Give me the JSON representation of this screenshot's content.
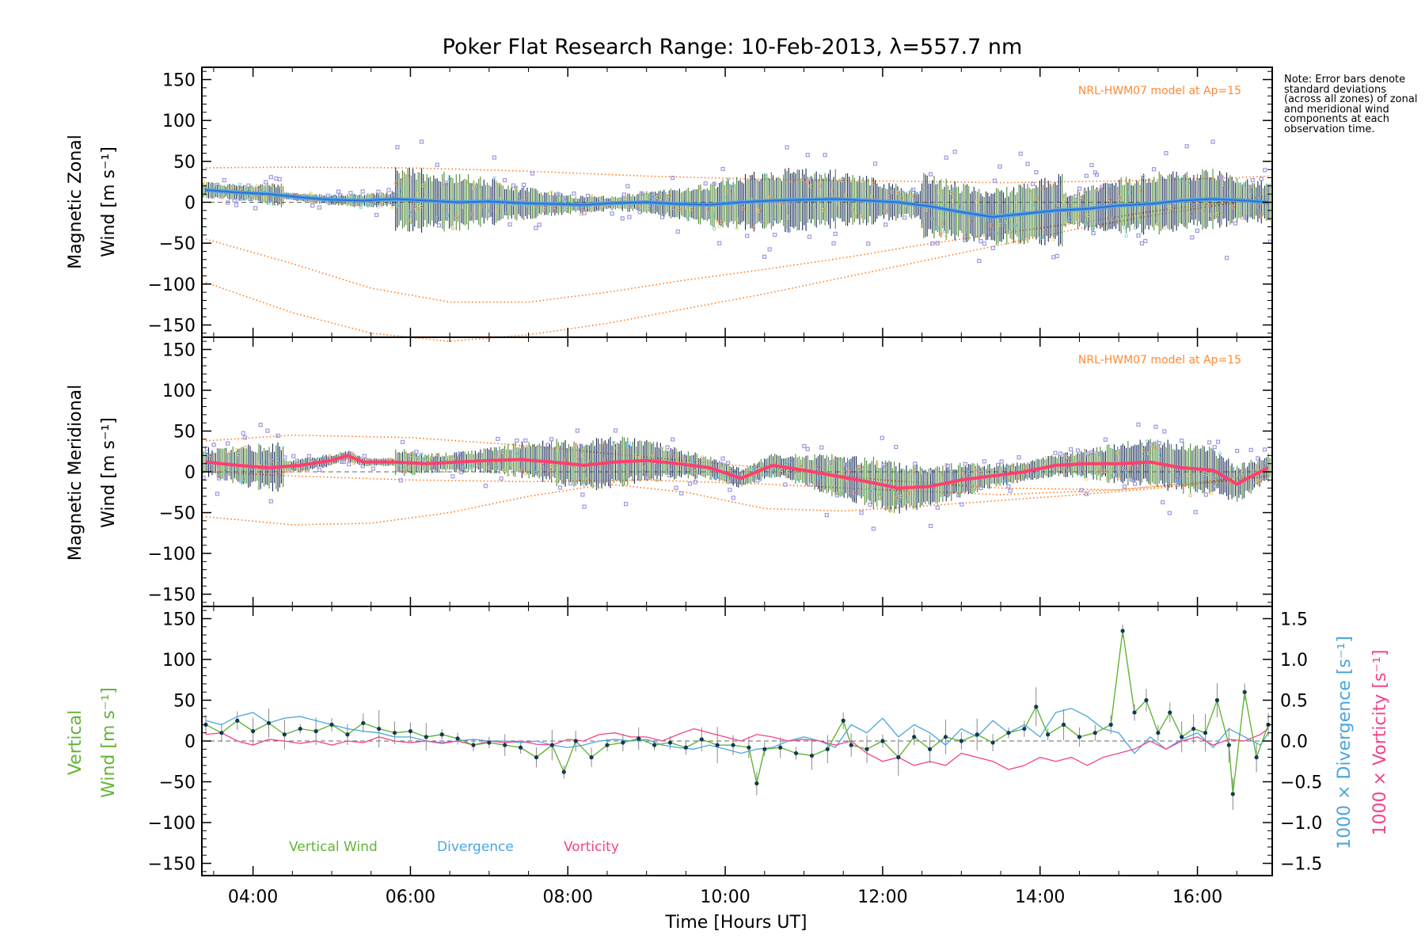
{
  "title": "Poker Flat Research Range: 10-Feb-2013, λ=557.7 nm",
  "note": "Note: Error bars denote standard deviations (across all zones) of zonal and meridional wind components at each observation time.",
  "xlabel": "Time [Hours UT]",
  "colors": {
    "zonal": "#2f6fd6",
    "zonal_light": "#52a6e0",
    "meridional": "#ff3f6e",
    "model": "#ff7a1a",
    "outlier": "#9f97e0",
    "vertical": "#62b536",
    "divergence": "#4aa6df",
    "vorticity": "#f4438a",
    "errorbar": "#1b2b55"
  },
  "chart_data": [
    {
      "type": "line",
      "panel": "zonal",
      "ylabel": "Magnetic Zonal Wind [m s⁻¹]",
      "ylabel_line1": "Magnetic Zonal",
      "ylabel_line2": "Wind [m s⁻¹]",
      "annotation": "NRL-HWM07 model at Ap=15",
      "xlim": [
        3.35,
        16.95
      ],
      "ylim": [
        -165,
        165
      ],
      "yticks": [
        150,
        100,
        50,
        0,
        -50,
        -100,
        -150
      ],
      "ytick_labels": [
        "150",
        "100",
        "50",
        "0",
        "−50",
        "−100",
        "−150"
      ],
      "series": [
        {
          "name": "zonal wind",
          "x": [
            3.4,
            3.8,
            4.2,
            4.6,
            5.0,
            5.4,
            5.8,
            6.2,
            6.6,
            7.0,
            7.4,
            7.8,
            8.2,
            8.6,
            9.0,
            9.4,
            9.8,
            10.2,
            10.6,
            11.0,
            11.4,
            11.8,
            12.2,
            12.6,
            13.0,
            13.4,
            13.8,
            14.2,
            14.6,
            15.0,
            15.4,
            15.8,
            16.2,
            16.6,
            16.9
          ],
          "y": [
            15,
            12,
            10,
            6,
            3,
            2,
            4,
            2,
            0,
            1,
            -1,
            -2,
            -3,
            -1,
            0,
            -2,
            -3,
            0,
            2,
            3,
            4,
            2,
            0,
            -5,
            -12,
            -18,
            -14,
            -10,
            -8,
            -4,
            -2,
            2,
            4,
            2,
            0
          ]
        },
        {
          "name": "model (upper)",
          "x": [
            3.4,
            4.5,
            6,
            7.5,
            9,
            10.5,
            12,
            13.5,
            15,
            16.5,
            16.9
          ],
          "y": [
            42,
            43,
            42,
            38,
            32,
            28,
            26,
            24,
            26,
            30,
            32
          ]
        },
        {
          "name": "model (lower 1)",
          "x": [
            3.4,
            4.5,
            5.5,
            6.5,
            7.5,
            8.5,
            9.5,
            10.5,
            11.5,
            12.5,
            13.5,
            14.5,
            15.5,
            16.5,
            16.9
          ],
          "y": [
            -45,
            -75,
            -105,
            -122,
            -122,
            -110,
            -95,
            -82,
            -68,
            -52,
            -38,
            -25,
            -10,
            2,
            8
          ]
        },
        {
          "name": "model (lower 2)",
          "x": [
            3.4,
            4.5,
            5.5,
            6.5,
            7.5,
            8.5,
            9.5,
            10.5,
            11.5,
            12.5,
            13.5,
            14.5,
            15.5,
            16.5,
            16.9
          ],
          "y": [
            -98,
            -135,
            -160,
            -170,
            -162,
            -148,
            -130,
            -112,
            -92,
            -72,
            -52,
            -32,
            -15,
            0,
            5
          ]
        }
      ]
    },
    {
      "type": "line",
      "panel": "meridional",
      "ylabel": "Magnetic Meridional Wind [m s⁻¹]",
      "ylabel_line1": "Magnetic Meridional",
      "ylabel_line2": "Wind [m s⁻¹]",
      "annotation": "NRL-HWM07 model at Ap=15",
      "xlim": [
        3.35,
        16.95
      ],
      "ylim": [
        -165,
        165
      ],
      "yticks": [
        150,
        100,
        50,
        0,
        -50,
        -100,
        -150
      ],
      "ytick_labels": [
        "150",
        "100",
        "50",
        "0",
        "−50",
        "−100",
        "−150"
      ],
      "series": [
        {
          "name": "meridional wind",
          "x": [
            3.4,
            3.8,
            4.2,
            4.6,
            5.0,
            5.2,
            5.4,
            5.8,
            6.2,
            6.6,
            7.0,
            7.4,
            7.8,
            8.2,
            8.6,
            9.0,
            9.4,
            9.8,
            10.2,
            10.4,
            10.6,
            11.0,
            11.4,
            11.8,
            12.2,
            12.6,
            13.0,
            13.4,
            13.8,
            14.2,
            14.6,
            15.0,
            15.4,
            15.8,
            16.2,
            16.5,
            16.7,
            16.9
          ],
          "y": [
            12,
            8,
            5,
            8,
            14,
            20,
            12,
            12,
            10,
            12,
            14,
            15,
            12,
            8,
            12,
            14,
            10,
            5,
            -8,
            0,
            8,
            2,
            -5,
            -12,
            -20,
            -18,
            -10,
            -5,
            0,
            8,
            10,
            10,
            12,
            5,
            2,
            -15,
            -5,
            5
          ]
        },
        {
          "name": "model (upper)",
          "x": [
            3.4,
            4.5,
            6,
            7.5,
            9,
            10.5,
            12,
            13.5,
            15,
            16.5,
            16.9
          ],
          "y": [
            38,
            45,
            42,
            32,
            18,
            5,
            -10,
            -20,
            -22,
            -10,
            -5
          ]
        },
        {
          "name": "model (lower 1)",
          "x": [
            3.4,
            4.5,
            5.5,
            6.5,
            7.5,
            8.5,
            9.5,
            10.5,
            11.5,
            12.5,
            13.5,
            14.5,
            15.5,
            16.5,
            16.9
          ],
          "y": [
            -55,
            -65,
            -63,
            -50,
            -30,
            -15,
            -25,
            -45,
            -48,
            -42,
            -35,
            -28,
            -20,
            -10,
            -5
          ]
        },
        {
          "name": "model (lower 2)",
          "x": [
            3.4,
            4.5,
            6,
            7.5,
            9,
            10.5,
            12,
            13.5,
            15,
            16.5,
            16.9
          ],
          "y": [
            0,
            -5,
            -10,
            -12,
            -10,
            -15,
            -22,
            -28,
            -22,
            -8,
            -2
          ]
        }
      ]
    },
    {
      "type": "line",
      "panel": "vertical",
      "ylabel_line1": "Vertical",
      "ylabel_line2": "Wind [m s⁻¹]",
      "y2label_div": "1000 × Divergence [s⁻¹]",
      "y2label_vor": "1000 × Vorticity [s⁻¹]",
      "xlim": [
        3.35,
        16.95
      ],
      "ylim": [
        -165,
        165
      ],
      "y2lim": [
        -1.65,
        1.65
      ],
      "yticks": [
        150,
        100,
        50,
        0,
        -50,
        -100,
        -150
      ],
      "ytick_labels": [
        "150",
        "100",
        "50",
        "0",
        "−50",
        "−100",
        "−150"
      ],
      "y2ticks": [
        1.5,
        1.0,
        0.5,
        0.0,
        -0.5,
        -1.0,
        -1.5
      ],
      "y2tick_labels": [
        "1.5",
        "1.0",
        "0.5",
        "0.0",
        "−0.5",
        "−1.0",
        "−1.5"
      ],
      "legend": [
        "Vertical Wind",
        "Divergence",
        "Vorticity"
      ],
      "xticks": [
        4,
        6,
        8,
        10,
        12,
        14,
        16
      ],
      "xtick_labels": [
        "04:00",
        "06:00",
        "08:00",
        "10:00",
        "12:00",
        "14:00",
        "16:00"
      ],
      "series": [
        {
          "name": "Vertical Wind",
          "x": [
            3.4,
            3.6,
            3.8,
            4.0,
            4.2,
            4.4,
            4.6,
            4.8,
            5.0,
            5.2,
            5.4,
            5.6,
            5.8,
            6.0,
            6.2,
            6.4,
            6.6,
            6.8,
            7.0,
            7.2,
            7.4,
            7.6,
            7.8,
            7.95,
            8.1,
            8.3,
            8.5,
            8.7,
            8.9,
            9.1,
            9.3,
            9.5,
            9.7,
            9.9,
            10.1,
            10.3,
            10.4,
            10.5,
            10.7,
            10.9,
            11.1,
            11.3,
            11.5,
            11.6,
            11.8,
            12.0,
            12.2,
            12.4,
            12.6,
            12.8,
            13.0,
            13.2,
            13.4,
            13.6,
            13.8,
            13.95,
            14.1,
            14.3,
            14.5,
            14.7,
            14.9,
            15.05,
            15.2,
            15.35,
            15.5,
            15.65,
            15.8,
            15.95,
            16.1,
            16.25,
            16.4,
            16.45,
            16.6,
            16.75,
            16.9
          ],
          "y": [
            20,
            10,
            25,
            12,
            22,
            8,
            15,
            12,
            20,
            8,
            22,
            15,
            10,
            12,
            5,
            8,
            3,
            -5,
            -2,
            -5,
            -8,
            -20,
            -5,
            -38,
            0,
            -20,
            -5,
            -2,
            3,
            -5,
            -2,
            -8,
            2,
            -5,
            -5,
            -8,
            -52,
            -10,
            -8,
            -15,
            -18,
            -10,
            25,
            -5,
            -10,
            0,
            -20,
            5,
            -10,
            5,
            0,
            8,
            -2,
            10,
            15,
            42,
            8,
            20,
            5,
            10,
            20,
            135,
            35,
            50,
            10,
            35,
            5,
            15,
            10,
            50,
            -5,
            -65,
            60,
            -20,
            20
          ]
        },
        {
          "name": "Divergence",
          "x": [
            3.4,
            3.6,
            3.8,
            4.0,
            4.2,
            4.4,
            4.6,
            4.8,
            5.0,
            5.2,
            5.4,
            5.6,
            5.8,
            6.0,
            6.2,
            6.4,
            6.6,
            6.8,
            7.0,
            7.2,
            7.4,
            7.6,
            7.8,
            8.0,
            8.2,
            8.4,
            8.6,
            8.8,
            9.0,
            9.2,
            9.4,
            9.6,
            9.8,
            10.0,
            10.2,
            10.4,
            10.6,
            10.8,
            11.0,
            11.2,
            11.4,
            11.6,
            11.8,
            12.0,
            12.2,
            12.4,
            12.6,
            12.8,
            13.0,
            13.2,
            13.4,
            13.6,
            13.8,
            14.0,
            14.2,
            14.4,
            14.6,
            14.8,
            15.0,
            15.2,
            15.4,
            15.6,
            15.8,
            16.0,
            16.2,
            16.4,
            16.6,
            16.8,
            16.9
          ],
          "y": [
            0.25,
            0.2,
            0.3,
            0.35,
            0.22,
            0.28,
            0.3,
            0.25,
            0.2,
            0.15,
            0.12,
            0.1,
            0.05,
            0.05,
            0.0,
            -0.02,
            0.0,
            0.02,
            0.0,
            0.0,
            -0.02,
            0.0,
            -0.05,
            -0.08,
            -0.05,
            0.0,
            0.02,
            0.0,
            0.02,
            -0.05,
            -0.08,
            -0.1,
            -0.05,
            -0.1,
            -0.15,
            -0.1,
            -0.08,
            0.0,
            0.05,
            0.0,
            -0.08,
            0.2,
            0.1,
            0.28,
            0.05,
            0.2,
            0.1,
            -0.05,
            0.15,
            0.05,
            0.25,
            0.1,
            0.2,
            0.05,
            0.35,
            0.4,
            0.3,
            0.15,
            0.1,
            -0.15,
            0.05,
            -0.1,
            0.02,
            0.1,
            -0.08,
            0.15,
            0.05,
            -0.05,
            0.1
          ]
        },
        {
          "name": "Vorticity",
          "x": [
            3.4,
            3.6,
            3.8,
            4.0,
            4.2,
            4.4,
            4.6,
            4.8,
            5.0,
            5.2,
            5.4,
            5.6,
            5.8,
            6.0,
            6.2,
            6.4,
            6.6,
            6.8,
            7.0,
            7.2,
            7.4,
            7.6,
            7.8,
            8.0,
            8.2,
            8.4,
            8.6,
            8.8,
            9.0,
            9.2,
            9.4,
            9.6,
            9.8,
            10.0,
            10.2,
            10.4,
            10.6,
            10.8,
            11.0,
            11.2,
            11.4,
            11.6,
            11.8,
            12.0,
            12.2,
            12.4,
            12.6,
            12.8,
            13.0,
            13.2,
            13.4,
            13.6,
            13.8,
            14.0,
            14.2,
            14.4,
            14.6,
            14.8,
            15.0,
            15.2,
            15.4,
            15.6,
            15.8,
            16.0,
            16.2,
            16.4,
            16.6,
            16.8,
            16.9
          ],
          "y": [
            0.08,
            0.1,
            0.0,
            -0.05,
            0.02,
            0.0,
            -0.03,
            0.0,
            -0.05,
            0.0,
            -0.02,
            0.05,
            0.0,
            -0.02,
            0.0,
            -0.03,
            0.0,
            -0.05,
            0.0,
            -0.02,
            0.0,
            -0.04,
            -0.05,
            0.02,
            0.0,
            0.08,
            0.1,
            0.05,
            0.05,
            0.0,
            0.08,
            0.15,
            0.1,
            0.05,
            0.0,
            0.08,
            0.05,
            0.0,
            0.02,
            0.0,
            -0.05,
            0.0,
            -0.15,
            -0.25,
            -0.2,
            -0.3,
            -0.25,
            -0.3,
            -0.15,
            -0.2,
            -0.25,
            -0.35,
            -0.3,
            -0.2,
            -0.25,
            -0.2,
            -0.3,
            -0.2,
            -0.15,
            -0.1,
            0.0,
            -0.1,
            0.0,
            0.05,
            -0.05,
            0.02,
            0.0,
            0.08,
            0.15
          ]
        }
      ]
    }
  ]
}
